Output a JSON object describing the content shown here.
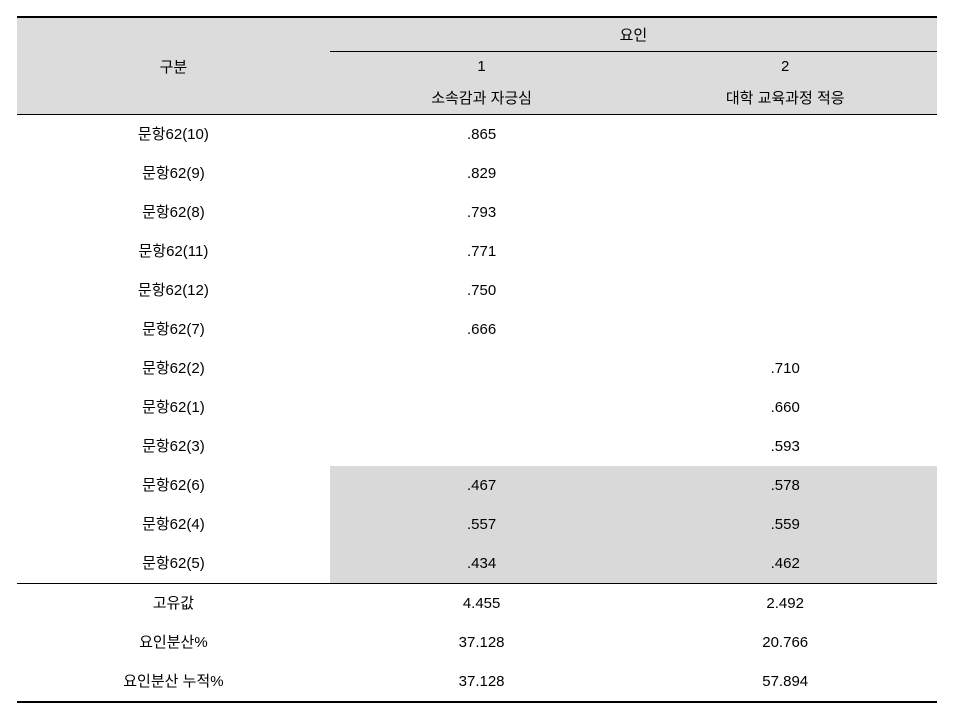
{
  "header": {
    "gubun": "구분",
    "yoin": "요인",
    "factor1_num": "1",
    "factor1_name": "소속감과 자긍심",
    "factor2_num": "2",
    "factor2_name": "대학 교육과정 적응"
  },
  "rows": [
    {
      "label": "문항62(10)",
      "f1": ".865",
      "f2": "",
      "shade": false
    },
    {
      "label": "문항62(9)",
      "f1": ".829",
      "f2": "",
      "shade": false
    },
    {
      "label": "문항62(8)",
      "f1": ".793",
      "f2": "",
      "shade": false
    },
    {
      "label": "문항62(11)",
      "f1": ".771",
      "f2": "",
      "shade": false
    },
    {
      "label": "문항62(12)",
      "f1": ".750",
      "f2": "",
      "shade": false
    },
    {
      "label": "문항62(7)",
      "f1": ".666",
      "f2": "",
      "shade": false
    },
    {
      "label": "문항62(2)",
      "f1": "",
      "f2": ".710",
      "shade": false
    },
    {
      "label": "문항62(1)",
      "f1": "",
      "f2": ".660",
      "shade": false
    },
    {
      "label": "문항62(3)",
      "f1": "",
      "f2": ".593",
      "shade": false
    },
    {
      "label": "문항62(6)",
      "f1": ".467",
      "f2": ".578",
      "shade": true
    },
    {
      "label": "문항62(4)",
      "f1": ".557",
      "f2": ".559",
      "shade": true
    },
    {
      "label": "문항62(5)",
      "f1": ".434",
      "f2": ".462",
      "shade": true
    }
  ],
  "summary": [
    {
      "label": "고유값",
      "f1": "4.455",
      "f2": "2.492"
    },
    {
      "label": "요인분산%",
      "f1": "37.128",
      "f2": "20.766"
    },
    {
      "label": "요인분산 누적%",
      "f1": "37.128",
      "f2": "57.894"
    }
  ]
}
